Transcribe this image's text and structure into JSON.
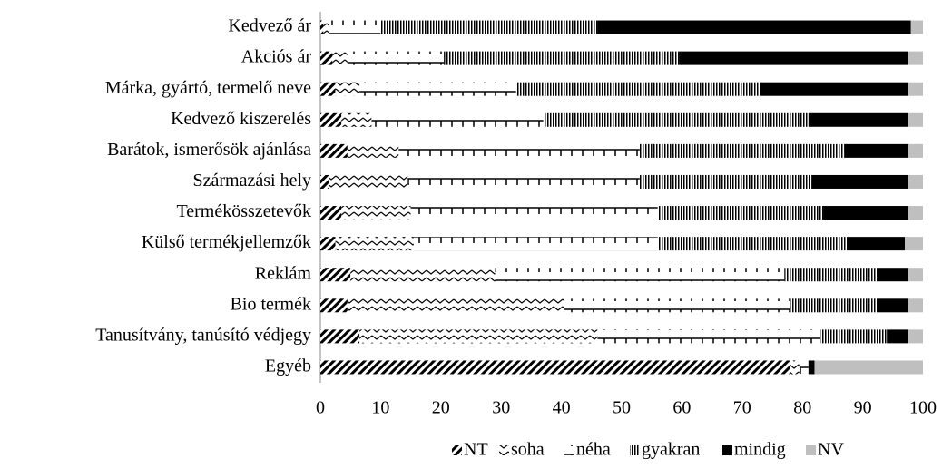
{
  "chart_data": {
    "type": "stacked-bar-horizontal",
    "categories": [
      "Kedvező ár",
      "Akciós ár",
      "Márka, gyártó, termelő neve",
      "Kedvező kiszerelés",
      "Barátok, ismerősök ajánlása",
      "Származási hely",
      "Termékösszetevők",
      "Külső termékjellemzők",
      "Reklám",
      "Bio termék",
      "Tanusítvány, tanúsító védjegy",
      "Egyéb"
    ],
    "series": [
      {
        "name": "NT",
        "color": "#000000",
        "pattern": "diagonal",
        "values": [
          0.5,
          2,
          2.5,
          3.5,
          4.5,
          1.5,
          3.5,
          2.5,
          5,
          4.5,
          6.5,
          78
        ]
      },
      {
        "name": "soha",
        "color": "#000000",
        "pattern": "zigzag",
        "values": [
          1,
          2.5,
          4,
          5,
          8.5,
          13,
          11.5,
          13,
          24,
          36,
          39.5,
          1.5
        ]
      },
      {
        "name": "néha",
        "color": "#000000",
        "pattern": "cross",
        "values": [
          8.5,
          16,
          26,
          28.5,
          40,
          38.5,
          41,
          40.5,
          48,
          37.5,
          37,
          1.5
        ]
      },
      {
        "name": "gyakran",
        "color": "#000000",
        "pattern": "vertical",
        "values": [
          36,
          39,
          40.5,
          44,
          34,
          28.5,
          27.5,
          31.5,
          15.5,
          14.5,
          11,
          0
        ]
      },
      {
        "name": "mindig",
        "color": "#000000",
        "pattern": "solid",
        "values": [
          52,
          38,
          24.5,
          16.5,
          10.5,
          16,
          14,
          9.5,
          5,
          5,
          3.5,
          1
        ]
      },
      {
        "name": "NV",
        "color": "#bfbfbf",
        "pattern": "solid",
        "values": [
          2,
          2.5,
          2.5,
          2.5,
          2.5,
          2.5,
          2.5,
          3,
          2.5,
          2.5,
          2.5,
          18
        ]
      }
    ],
    "xlim": [
      0,
      100
    ],
    "xticks": [
      0,
      10,
      20,
      30,
      40,
      50,
      60,
      70,
      80,
      90,
      100
    ],
    "legend": "bottom"
  }
}
